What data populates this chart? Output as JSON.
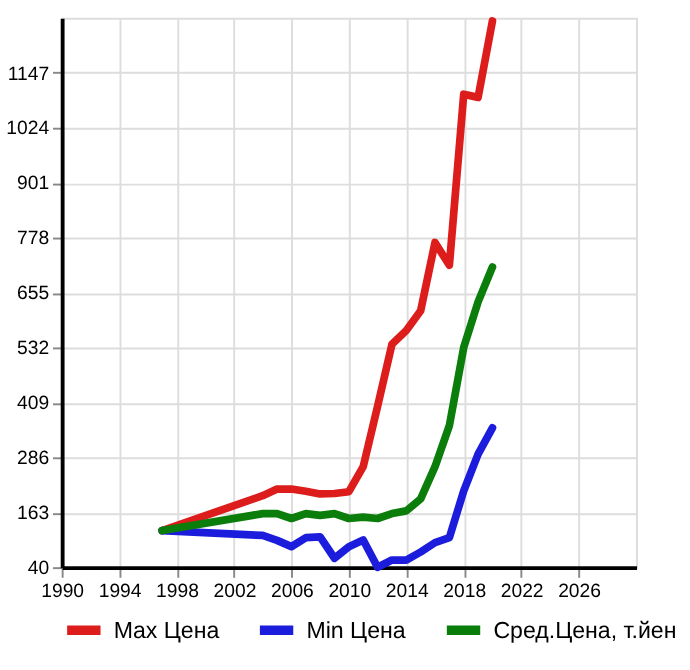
{
  "chart_data": {
    "type": "line",
    "x": [
      1997,
      2004,
      2005,
      2006,
      2007,
      2008,
      2009,
      2010,
      2011,
      2012,
      2013,
      2014,
      2015,
      2016,
      2017,
      2018,
      2019,
      2020
    ],
    "series": [
      {
        "name": "Max Цена",
        "color": "#dd1c1c",
        "values": [
          122,
          200,
          215,
          215,
          210,
          204,
          205,
          209,
          265,
          400,
          539,
          570,
          614,
          767,
          716,
          1099,
          1092,
          1263
        ]
      },
      {
        "name": "Min Цена",
        "color": "#1c1cdd",
        "values": [
          122,
          111,
          100,
          86,
          106,
          108,
          60,
          86,
          101,
          40,
          56,
          56,
          74,
          95,
          106,
          211,
          293,
          352
        ]
      },
      {
        "name": "Сред.Цена, т.йен",
        "color": "#0a7d0a",
        "values": [
          122,
          160,
          160,
          149,
          160,
          156,
          160,
          149,
          152,
          149,
          160,
          166,
          193,
          265,
          357,
          532,
          634,
          712
        ]
      }
    ],
    "xlim": [
      1990,
      2030
    ],
    "xticks": [
      1990,
      1994,
      1998,
      2002,
      2006,
      2010,
      2014,
      2018,
      2022,
      2026
    ],
    "ylim": [
      40,
      1270
    ],
    "yticks": [
      40,
      163,
      286,
      409,
      532,
      655,
      778,
      901,
      1024,
      1147
    ],
    "grid": true,
    "legend": "bottom",
    "line_style": "solid"
  }
}
